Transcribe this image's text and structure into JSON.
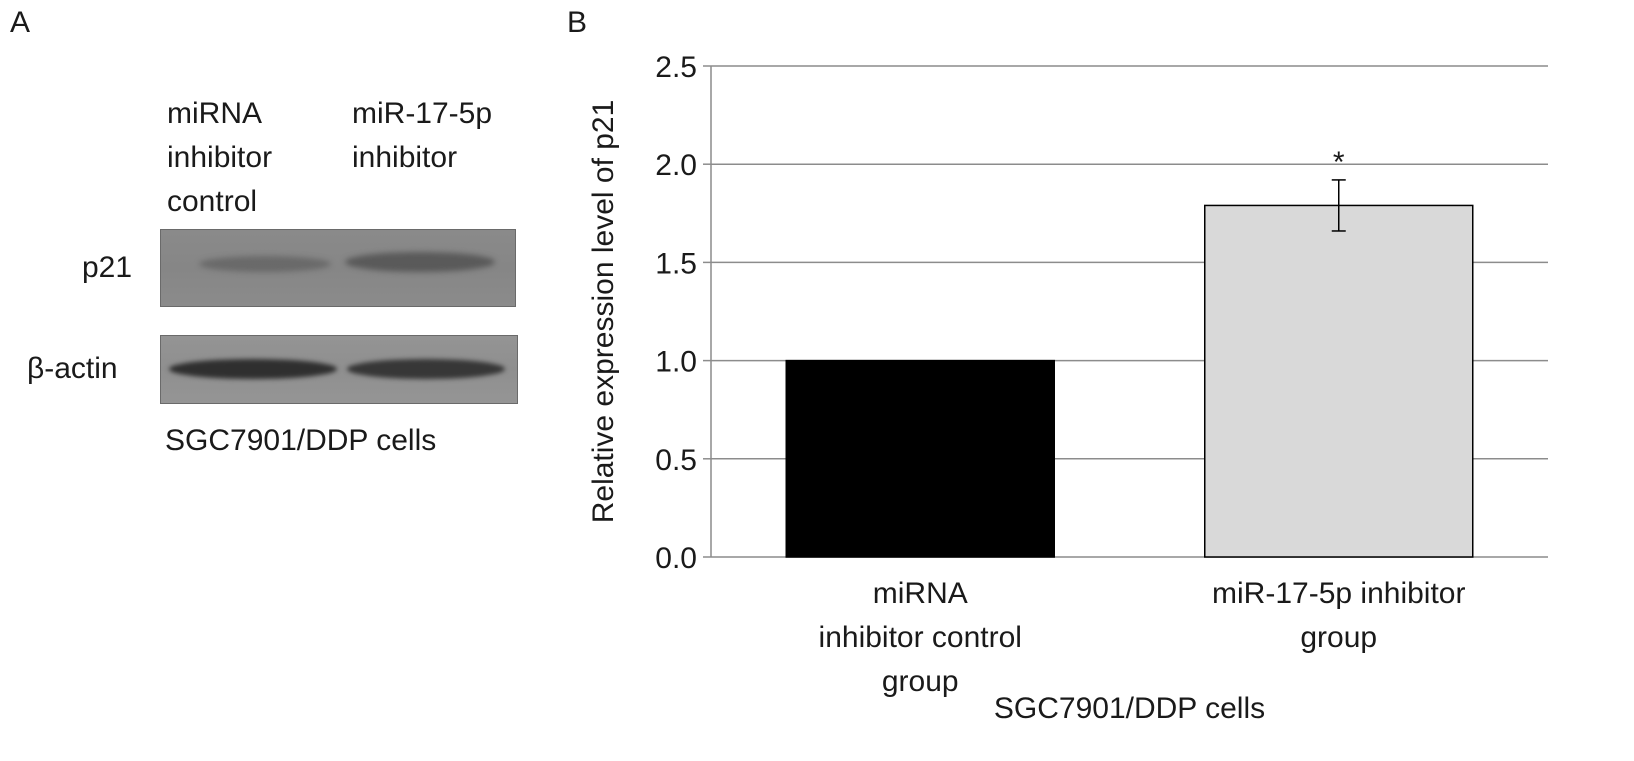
{
  "panel_a": {
    "letter": "A",
    "lanes": [
      {
        "lines": [
          "miRNA",
          "inhibitor",
          "control"
        ]
      },
      {
        "lines": [
          "miR-17-5p",
          "inhibitor"
        ]
      }
    ],
    "rows": [
      "p21",
      "β-actin"
    ],
    "caption": "SGC7901/DDP cells"
  },
  "panel_b": {
    "letter": "B"
  },
  "chart_data": {
    "type": "bar",
    "categories": [
      "miRNA inhibitor control group",
      "miR-17-5p inhibitor group"
    ],
    "category_label_lines": [
      [
        "miRNA",
        "inhibitor control",
        "group"
      ],
      [
        "miR-17-5p inhibitor",
        "group"
      ]
    ],
    "values": [
      1.0,
      1.79
    ],
    "error": [
      0,
      0.13
    ],
    "bar_colors": [
      "#000000",
      "#d9d9d9"
    ],
    "annotations": [
      "",
      "*"
    ],
    "ylabel": "Relative expression level of p21",
    "xlabel": "SGC7901/DDP cells",
    "ylim": [
      0,
      2.5
    ],
    "yticks": [
      "0.0",
      "0.5",
      "1.0",
      "1.5",
      "2.0",
      "2.5"
    ],
    "grid": true
  }
}
